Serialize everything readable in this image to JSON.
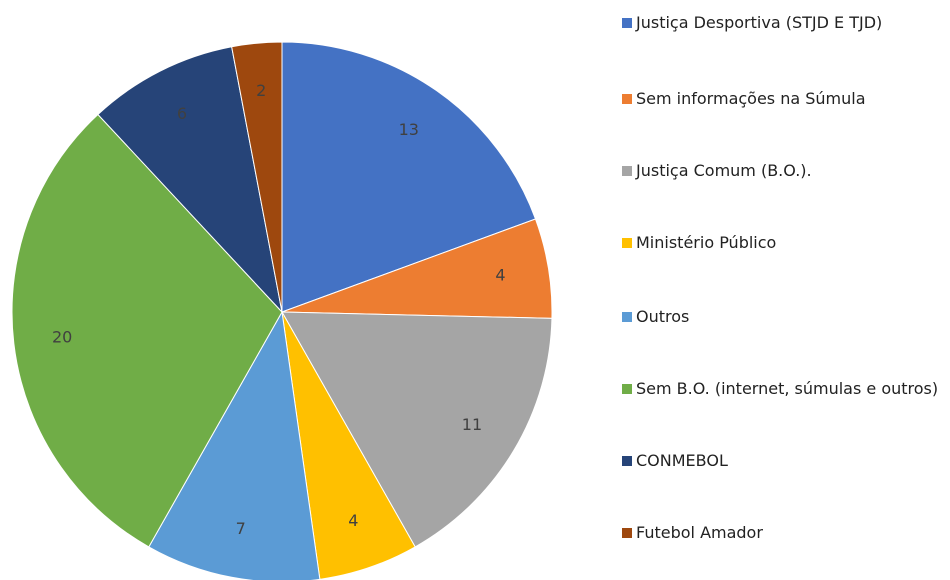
{
  "chart_data": {
    "type": "pie",
    "categories": [
      "Justiça Desportiva (STJD E TJD)",
      "Sem informações na Súmula",
      "Justiça Comum (B.O.).",
      "Ministério Público",
      "Outros",
      "Sem B.O. (internet, súmulas e outros)",
      "CONMEBOL",
      "Futebol Amador"
    ],
    "values": [
      13,
      4,
      11,
      4,
      7,
      20,
      6,
      2
    ],
    "colors": [
      "#4472c4",
      "#ed7d31",
      "#a5a5a5",
      "#ffc000",
      "#5b9bd5",
      "#70ad47",
      "#264478",
      "#9e480e"
    ],
    "legend": "right"
  }
}
